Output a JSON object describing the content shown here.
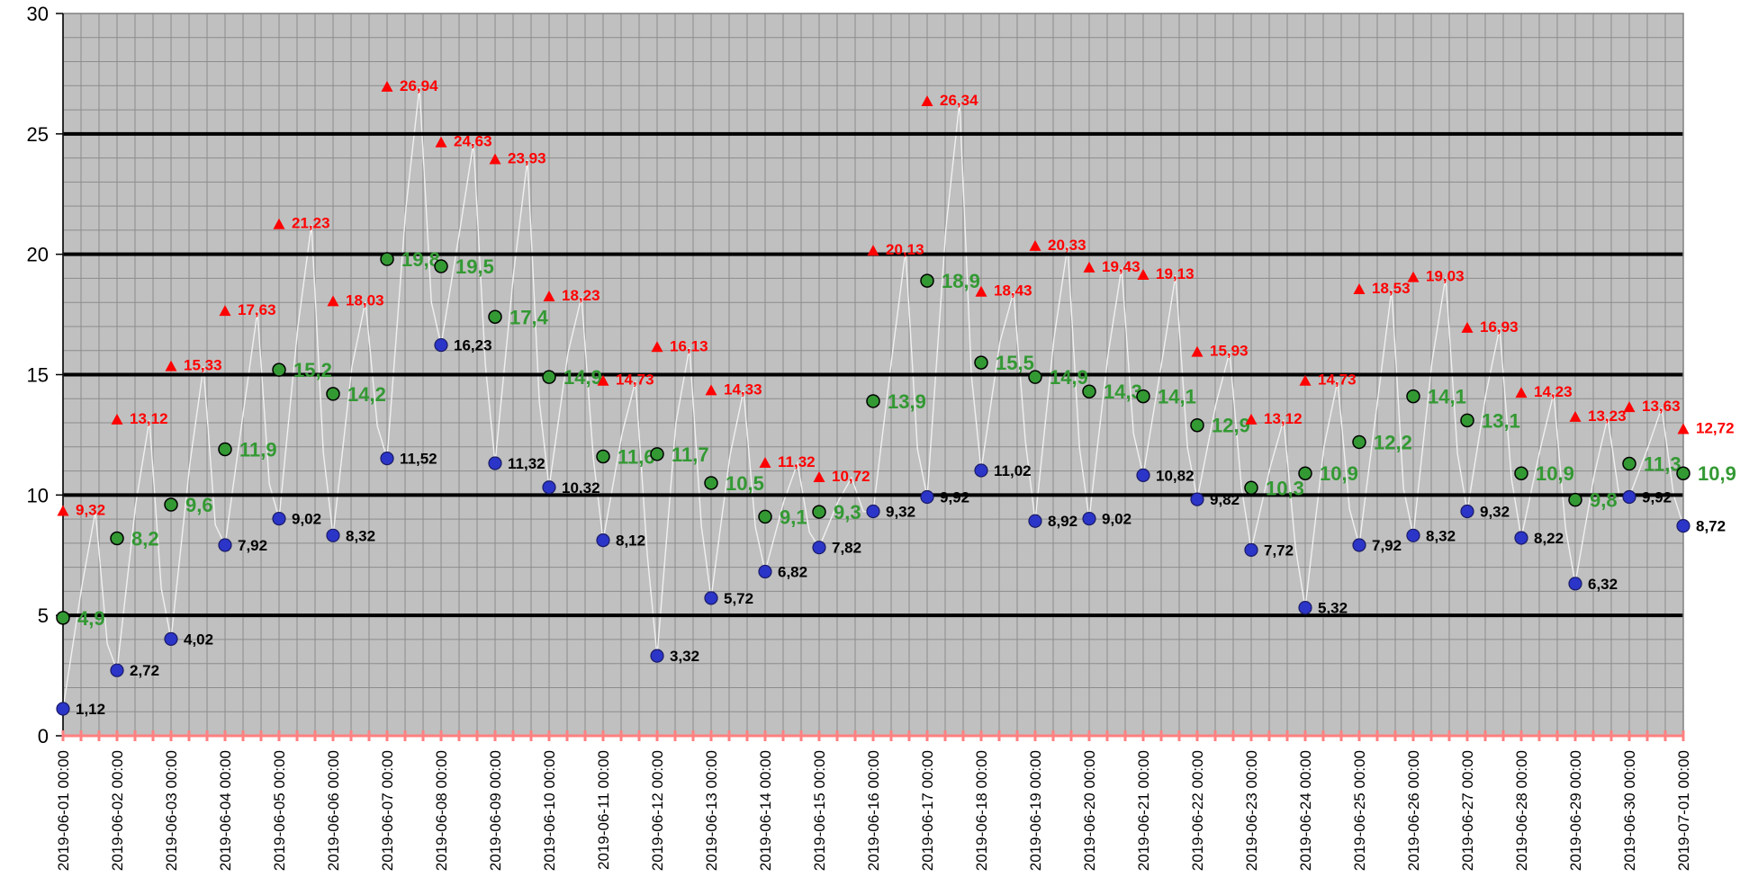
{
  "chart_data": {
    "type": "scatter",
    "title": "",
    "xlabel": "",
    "ylabel": "",
    "ylim": [
      0,
      30
    ],
    "yticks": [
      0,
      5,
      10,
      15,
      20,
      25,
      30
    ],
    "x_tick_labels": [
      "2019-06-01 00:00",
      "2019-06-02 00:00",
      "2019-06-03 00:00",
      "2019-06-04 00:00",
      "2019-06-05 00:00",
      "2019-06-06 00:00",
      "2019-06-07 00:00",
      "2019-06-08 00:00",
      "2019-06-09 00:00",
      "2019-06-10 00:00",
      "2019-06-11 00:00",
      "2019-06-12 00:00",
      "2019-06-13 00:00",
      "2019-06-14 00:00",
      "2019-06-15 00:00",
      "2019-06-16 00:00",
      "2019-06-17 00:00",
      "2019-06-18 00:00",
      "2019-06-19 00:00",
      "2019-06-20 00:00",
      "2019-06-21 00:00",
      "2019-06-22 00:00",
      "2019-06-23 00:00",
      "2019-06-24 00:00",
      "2019-06-25 00:00",
      "2019-06-26 00:00",
      "2019-06-27 00:00",
      "2019-06-28 00:00",
      "2019-06-29 00:00",
      "2019-06-30 00:00",
      "2019-07-01 00:00"
    ],
    "grid": true,
    "major_gridlines": [
      5,
      10,
      15,
      20,
      25
    ],
    "colors": {
      "plot_bg": "#c0c0c0",
      "minor_grid": "#8c8c8c",
      "major_grid": "#000000",
      "max": "#ff0000",
      "min": "#2b35c8",
      "avg": "#339933",
      "temp_line": "#f0f0f0",
      "x_axis": "#ff8080"
    },
    "series": [
      {
        "marker": "triangle",
        "color": "#ff0000",
        "values": [
          9.32,
          13.12,
          15.33,
          17.63,
          21.23,
          18.03,
          26.94,
          24.63,
          23.93,
          18.23,
          14.73,
          16.13,
          14.33,
          11.32,
          10.72,
          20.13,
          26.34,
          18.43,
          20.33,
          19.43,
          19.13,
          15.93,
          13.12,
          14.73,
          18.53,
          19.03,
          16.93,
          14.23,
          13.23,
          13.63,
          12.72
        ],
        "labels": [
          "9,32",
          "13,12",
          "15,33",
          "17,63",
          "21,23",
          "18,03",
          "26,94",
          "24,63",
          "23,93",
          "18,23",
          "14,73",
          "16,13",
          "14,33",
          "11,32",
          "10,72",
          "20,13",
          "26,34",
          "18,43",
          "20,33",
          "19,43",
          "19,13",
          "15,93",
          "13,12",
          "14,73",
          "18,53",
          "19,03",
          "16,93",
          "14,23",
          "13,23",
          "13,63",
          "12,72"
        ]
      },
      {
        "marker": "circle",
        "color": "#2b35c8",
        "values": [
          1.12,
          2.72,
          4.02,
          7.92,
          9.02,
          8.32,
          11.52,
          16.23,
          11.32,
          10.32,
          8.12,
          3.32,
          5.72,
          6.82,
          7.82,
          9.32,
          9.92,
          11.02,
          8.92,
          9.02,
          10.82,
          9.82,
          7.72,
          5.32,
          7.92,
          8.32,
          9.32,
          8.22,
          6.32,
          9.92,
          8.72
        ],
        "labels": [
          "1,12",
          "2,72",
          "4,02",
          "7,92",
          "9,02",
          "8,32",
          "11,52",
          "16,23",
          "11,32",
          "10,32",
          "8,12",
          "3,32",
          "5,72",
          "6,82",
          "7,82",
          "9,32",
          "9,92",
          "11,02",
          "8,92",
          "9,02",
          "10,82",
          "9,82",
          "7,72",
          "5,32",
          "7,92",
          "8,32",
          "9,32",
          "8,22",
          "6,32",
          "9,92",
          "8,72"
        ]
      },
      {
        "marker": "circle",
        "color": "#339933",
        "values": [
          4.9,
          8.2,
          9.6,
          11.9,
          15.2,
          14.2,
          19.8,
          19.5,
          17.4,
          14.9,
          11.6,
          11.7,
          10.5,
          9.1,
          9.3,
          13.9,
          18.9,
          15.5,
          14.9,
          14.3,
          14.1,
          12.9,
          10.3,
          10.9,
          12.2,
          14.1,
          13.1,
          10.9,
          9.8,
          11.3,
          10.9
        ],
        "labels": [
          "4,9",
          "8,2",
          "9,6",
          "11,9",
          "15,2",
          "14,2",
          "19,8",
          "19,5",
          "17,4",
          "14,9",
          "11,6",
          "11,7",
          "10,5",
          "9,1",
          "9,3",
          "13,9",
          "18,9",
          "15,5",
          "14,9",
          "14,3",
          "14,1",
          "12,9",
          "10,3",
          "10,9",
          "12,2",
          "14,1",
          "13,1",
          "10,9",
          "9,8",
          "11,3",
          "10,9"
        ]
      }
    ]
  }
}
